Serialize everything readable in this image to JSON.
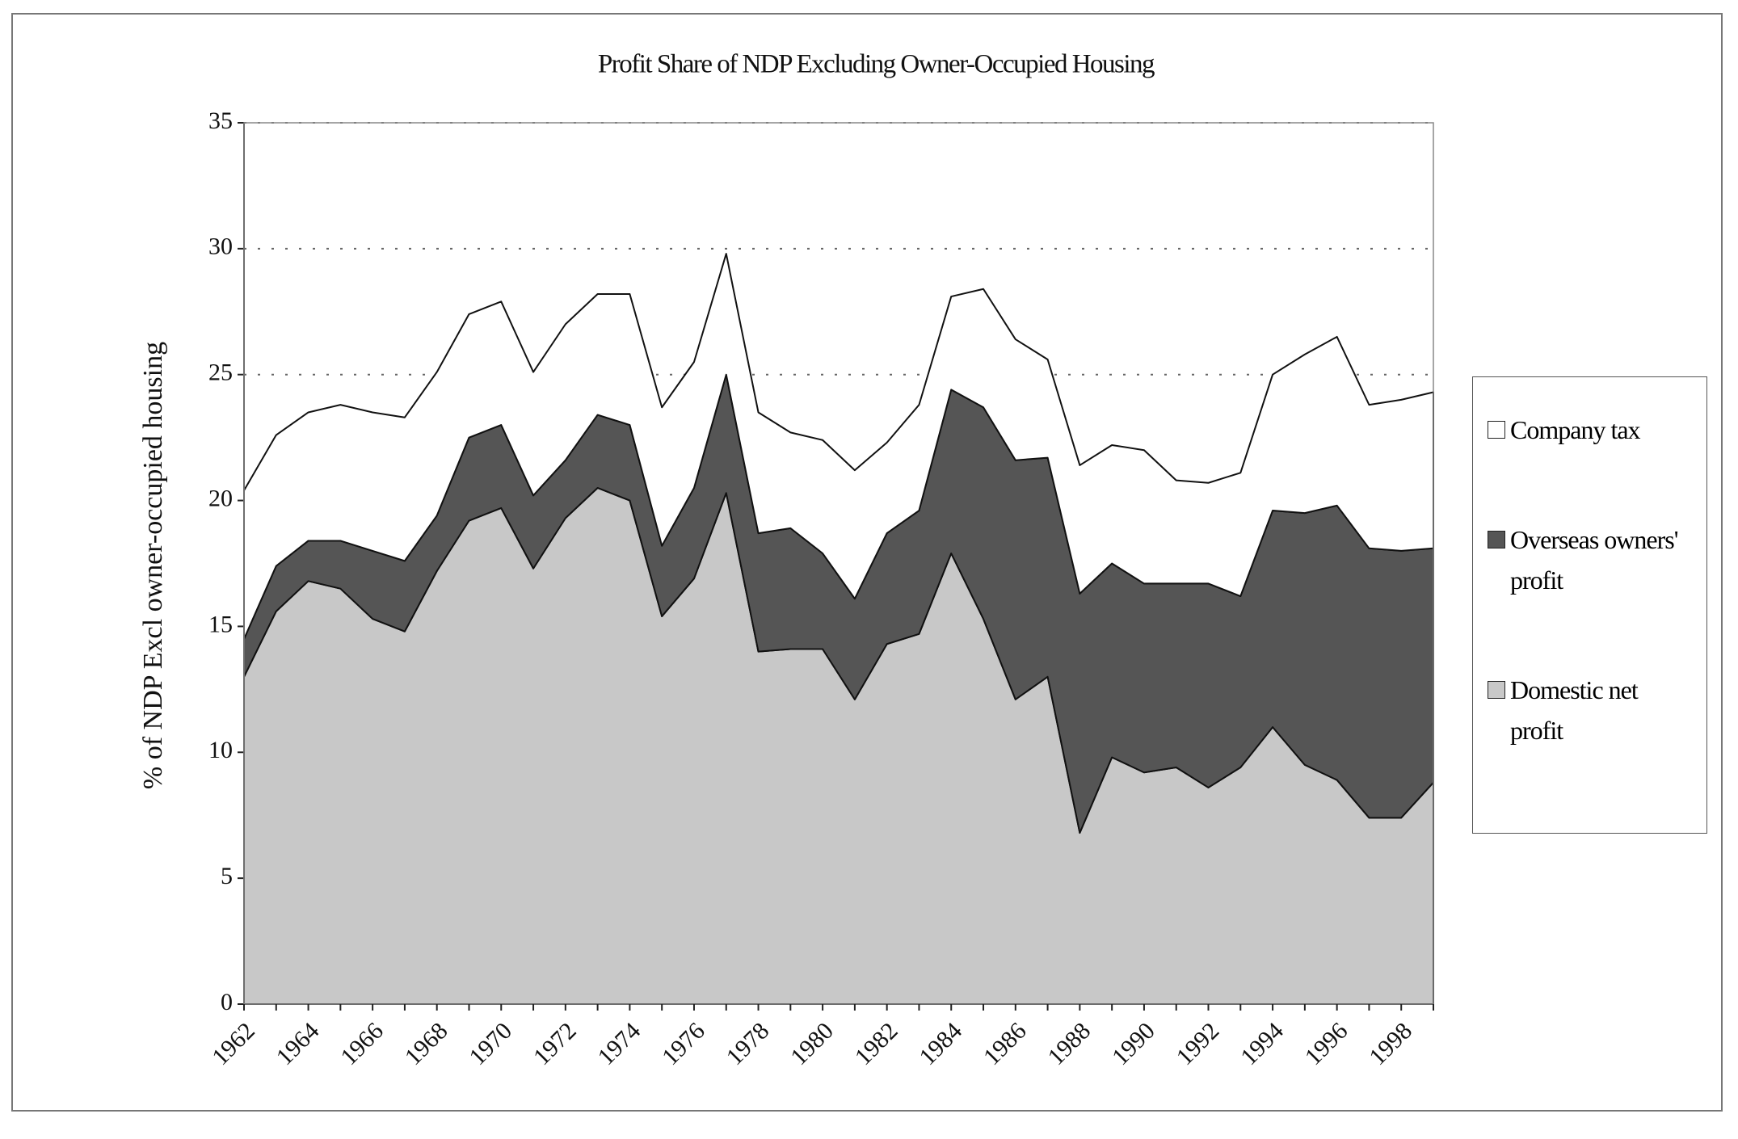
{
  "chart_data": {
    "type": "area",
    "title": "Profit Share of NDP Excluding Owner-Occupied Housing",
    "y_label": "% of NDP Excl owner-occupied housing",
    "categories": [
      "1962",
      null,
      "1964",
      null,
      "1966",
      null,
      "1968",
      null,
      "1970",
      null,
      "1972",
      null,
      "1974",
      null,
      "1976",
      null,
      "1978",
      null,
      "1980",
      null,
      "1982",
      null,
      "1984",
      null,
      "1986",
      null,
      "1988",
      null,
      "1990",
      null,
      "1992",
      null,
      "1994",
      null,
      "1996",
      null,
      "1998",
      null
    ],
    "series": [
      {
        "name": "Company tax",
        "color": "#ffffff",
        "values": [
          5.9,
          5.2,
          5.1,
          5.4,
          5.5,
          5.7,
          5.7,
          4.9,
          4.9,
          4.9,
          5.4,
          4.8,
          5.2,
          5.5,
          5.0,
          4.8,
          4.8,
          3.8,
          4.5,
          5.1,
          3.6,
          4.2,
          3.7,
          4.7,
          4.8,
          3.9,
          5.1,
          4.7,
          5.3,
          4.1,
          4.0,
          4.9,
          5.4,
          6.3,
          6.7,
          5.7,
          6.0,
          6.2
        ]
      },
      {
        "name": "Overseas owners' profit",
        "color": "#555555",
        "values": [
          1.5,
          1.8,
          1.6,
          1.9,
          2.7,
          2.8,
          2.2,
          3.3,
          3.3,
          2.9,
          2.3,
          2.9,
          3.0,
          2.8,
          3.6,
          4.7,
          4.7,
          4.8,
          3.8,
          4.0,
          4.4,
          4.9,
          6.5,
          8.4,
          9.5,
          8.7,
          9.5,
          7.7,
          7.5,
          7.3,
          8.1,
          6.8,
          8.6,
          10.0,
          10.9,
          10.7,
          10.6,
          9.3
        ]
      },
      {
        "name": "Domestic net profit",
        "color": "#c8c8c8",
        "values": [
          13.0,
          15.6,
          16.8,
          16.5,
          15.3,
          14.8,
          17.2,
          19.2,
          19.7,
          17.3,
          19.3,
          20.5,
          20.0,
          15.4,
          16.9,
          20.3,
          14.0,
          14.1,
          14.1,
          12.1,
          14.3,
          14.7,
          17.9,
          15.3,
          12.1,
          13.0,
          6.8,
          9.8,
          9.2,
          9.4,
          8.6,
          9.4,
          11.0,
          9.5,
          8.9,
          7.4,
          7.4,
          8.8
        ]
      }
    ],
    "ylim": [
      0,
      35
    ],
    "yticks": [
      0,
      5,
      10,
      15,
      20,
      25,
      30,
      35
    ],
    "grid": true
  }
}
